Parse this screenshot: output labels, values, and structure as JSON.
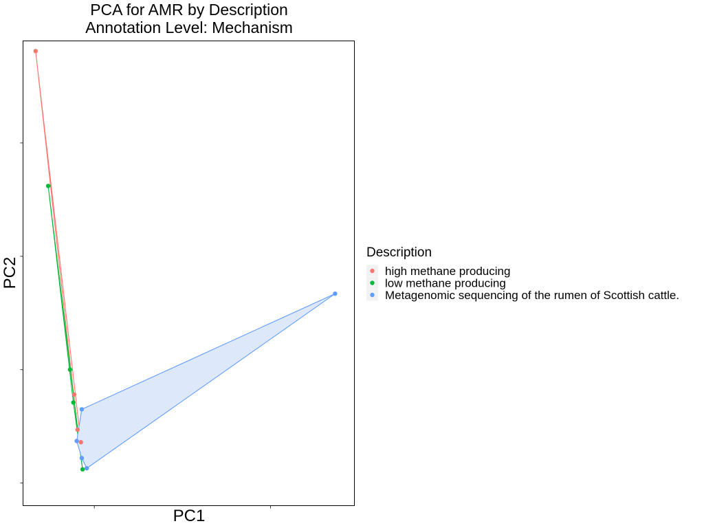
{
  "chart_data": {
    "type": "scatter",
    "title": "PCA for AMR by Description",
    "subtitle": "Annotation Level: Mechanism",
    "xlabel": "PC1",
    "ylabel": "PC2",
    "xlim": [
      -0.45,
      3.5
    ],
    "ylim": [
      -0.2,
      3.9
    ],
    "x_ticks": [
      0.4,
      2.5
    ],
    "y_ticks": [
      0,
      1,
      2,
      3
    ],
    "x_tick_labels_shown": false,
    "y_tick_labels_shown": false,
    "grid": false,
    "legend_title": "Description",
    "legend_position": "right",
    "hull_fill": "none except last series",
    "series": [
      {
        "name": "high methane producing",
        "color": "#F8766D",
        "hull_filled": false,
        "points": [
          {
            "x": -0.3,
            "y": 3.81
          },
          {
            "x": 0.16,
            "y": 0.78
          },
          {
            "x": 0.2,
            "y": 0.47
          },
          {
            "x": 0.24,
            "y": 0.36
          }
        ]
      },
      {
        "name": "low methane producing",
        "color": "#00BA38",
        "hull_filled": false,
        "points": [
          {
            "x": -0.15,
            "y": 2.62
          },
          {
            "x": 0.11,
            "y": 1.0
          },
          {
            "x": 0.15,
            "y": 0.71
          },
          {
            "x": 0.26,
            "y": 0.12
          }
        ]
      },
      {
        "name": "Metagenomic sequencing of the rumen of Scottish cattle.",
        "color": "#619CFF",
        "hull_filled": true,
        "hull_fill_color": "#DDE8FB",
        "points": [
          {
            "x": 3.27,
            "y": 1.67
          },
          {
            "x": 0.25,
            "y": 0.65
          },
          {
            "x": 0.19,
            "y": 0.37
          },
          {
            "x": 0.25,
            "y": 0.22
          },
          {
            "x": 0.31,
            "y": 0.13
          }
        ]
      }
    ]
  }
}
